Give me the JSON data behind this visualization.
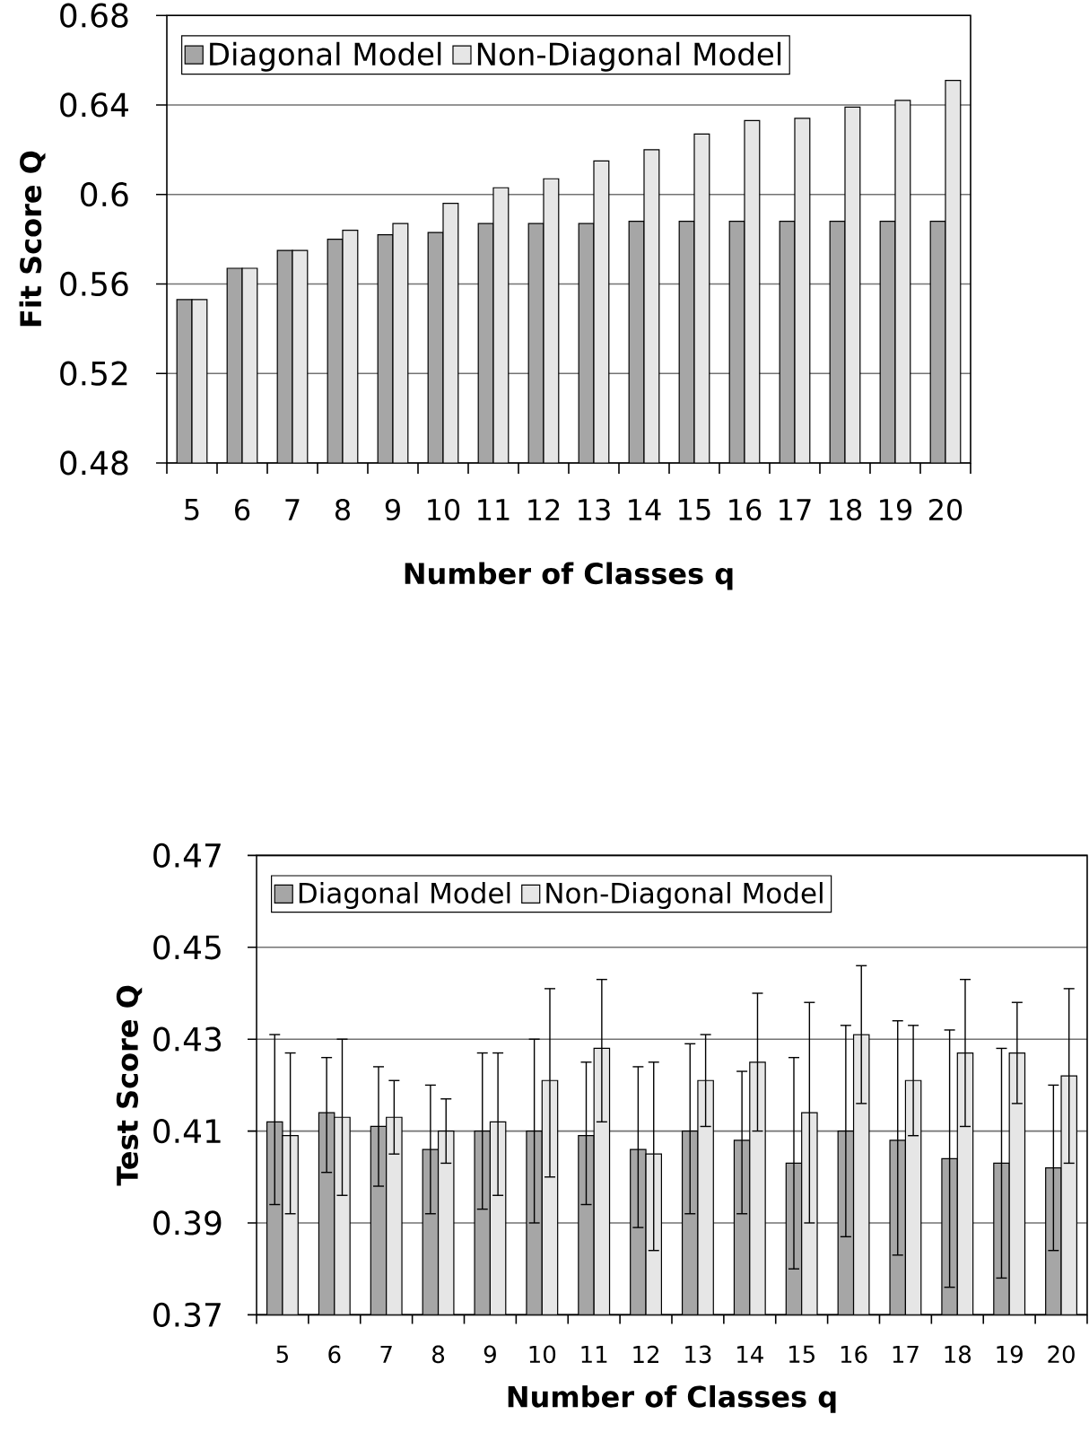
{
  "chart_data": [
    {
      "type": "bar",
      "xlabel": "Number of Classes q",
      "ylabel": "Fit Score Q",
      "categories": [
        "5",
        "6",
        "7",
        "8",
        "9",
        "10",
        "11",
        "12",
        "13",
        "14",
        "15",
        "16",
        "17",
        "18",
        "19",
        "20"
      ],
      "series": [
        {
          "name": "Diagonal Model",
          "color": "#a6a6a6",
          "values": [
            0.553,
            0.567,
            0.575,
            0.58,
            0.582,
            0.583,
            0.587,
            0.587,
            0.587,
            0.588,
            0.588,
            0.588,
            0.588,
            0.588,
            0.588,
            0.588
          ]
        },
        {
          "name": "Non-Diagonal Model",
          "color": "#e6e6e6",
          "values": [
            0.553,
            0.567,
            0.575,
            0.584,
            0.587,
            0.596,
            0.603,
            0.607,
            0.615,
            0.62,
            0.627,
            0.633,
            0.634,
            0.639,
            0.642,
            0.651
          ]
        }
      ],
      "ylim": [
        0.48,
        0.68
      ],
      "yticks": [
        0.48,
        0.52,
        0.56,
        0.6,
        0.64,
        0.68
      ],
      "grid": "y",
      "legend": "top left"
    },
    {
      "type": "bar",
      "xlabel": "Number of Classes q",
      "ylabel": "Test Score Q",
      "categories": [
        "5",
        "6",
        "7",
        "8",
        "9",
        "10",
        "11",
        "12",
        "13",
        "14",
        "15",
        "16",
        "17",
        "18",
        "19",
        "20"
      ],
      "series": [
        {
          "name": "Diagonal Model",
          "color": "#a6a6a6",
          "values": [
            0.412,
            0.414,
            0.411,
            0.406,
            0.41,
            0.41,
            0.409,
            0.406,
            0.41,
            0.408,
            0.403,
            0.41,
            0.408,
            0.404,
            0.403,
            0.402
          ],
          "errors": [
            [
              0.394,
              0.431
            ],
            [
              0.401,
              0.426
            ],
            [
              0.398,
              0.424
            ],
            [
              0.392,
              0.42
            ],
            [
              0.393,
              0.427
            ],
            [
              0.39,
              0.43
            ],
            [
              0.394,
              0.425
            ],
            [
              0.389,
              0.424
            ],
            [
              0.392,
              0.429
            ],
            [
              0.392,
              0.423
            ],
            [
              0.38,
              0.426
            ],
            [
              0.387,
              0.433
            ],
            [
              0.383,
              0.434
            ],
            [
              0.376,
              0.432
            ],
            [
              0.378,
              0.428
            ],
            [
              0.384,
              0.42
            ]
          ]
        },
        {
          "name": "Non-Diagonal Model",
          "color": "#e6e6e6",
          "values": [
            0.409,
            0.413,
            0.413,
            0.41,
            0.412,
            0.421,
            0.428,
            0.405,
            0.421,
            0.425,
            0.414,
            0.431,
            0.421,
            0.427,
            0.427,
            0.422
          ],
          "errors": [
            [
              0.392,
              0.427
            ],
            [
              0.396,
              0.43
            ],
            [
              0.405,
              0.421
            ],
            [
              0.403,
              0.417
            ],
            [
              0.396,
              0.427
            ],
            [
              0.4,
              0.441
            ],
            [
              0.412,
              0.443
            ],
            [
              0.384,
              0.425
            ],
            [
              0.411,
              0.431
            ],
            [
              0.41,
              0.44
            ],
            [
              0.39,
              0.438
            ],
            [
              0.416,
              0.446
            ],
            [
              0.409,
              0.433
            ],
            [
              0.411,
              0.443
            ],
            [
              0.416,
              0.438
            ],
            [
              0.403,
              0.441
            ]
          ]
        }
      ],
      "ylim": [
        0.37,
        0.47
      ],
      "yticks": [
        0.37,
        0.39,
        0.41,
        0.43,
        0.45,
        0.47
      ],
      "grid": "y",
      "legend": "top left"
    }
  ]
}
